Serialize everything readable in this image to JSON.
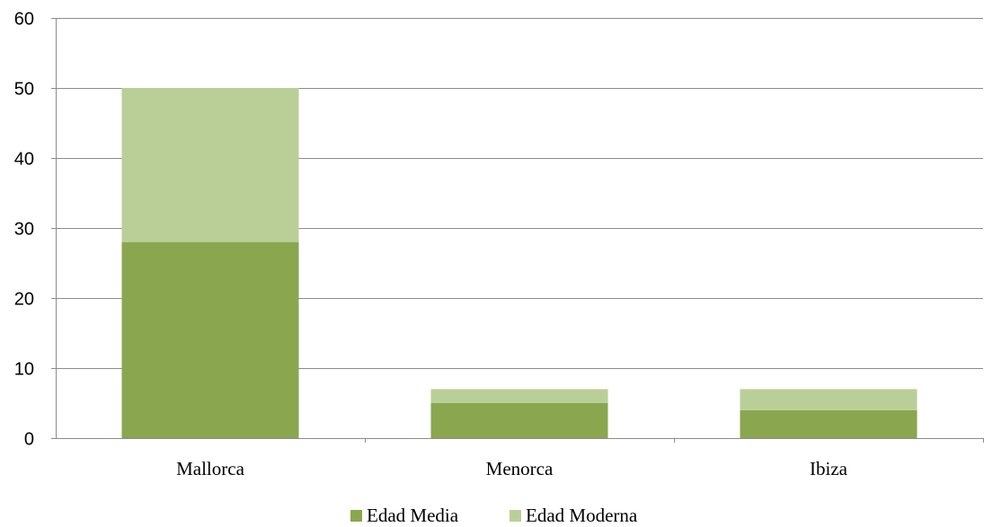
{
  "chart_data": {
    "type": "bar",
    "stacked": true,
    "categories": [
      "Mallorca",
      "Menorca",
      "Ibiza"
    ],
    "series": [
      {
        "name": "Edad Media",
        "values": [
          28,
          5,
          4
        ],
        "color": "#8aa64f"
      },
      {
        "name": "Edad Moderna",
        "values": [
          22,
          2,
          3
        ],
        "color": "#bacf98"
      }
    ],
    "ylim": [
      0,
      60
    ],
    "yticks": [
      "0",
      "10",
      "20",
      "30",
      "40",
      "50",
      "60"
    ],
    "title": "",
    "xlabel": "",
    "ylabel": "",
    "grid": true,
    "legend": "bottom"
  }
}
